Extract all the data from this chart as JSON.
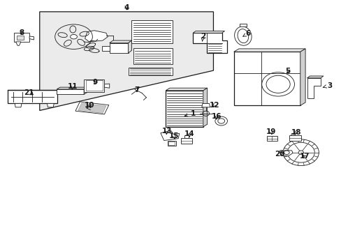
{
  "bg_color": "#ffffff",
  "line_color": "#1a1a1a",
  "figsize": [
    4.89,
    3.6
  ],
  "dpi": 100,
  "labels": {
    "1": [
      0.561,
      0.535,
      0.538,
      0.535
    ],
    "2": [
      0.6,
      0.858,
      0.6,
      0.838
    ],
    "3": [
      0.96,
      0.62,
      0.94,
      0.615
    ],
    "4": [
      0.37,
      0.978,
      0.37,
      0.96
    ],
    "5": [
      0.84,
      0.71,
      0.84,
      0.695
    ],
    "6": [
      0.73,
      0.858,
      0.718,
      0.842
    ],
    "7": [
      0.39,
      0.64,
      0.4,
      0.625
    ],
    "8": [
      0.062,
      0.878,
      0.062,
      0.86
    ],
    "9": [
      0.28,
      0.665,
      0.295,
      0.652
    ],
    "10": [
      0.265,
      0.57,
      0.285,
      0.565
    ],
    "11": [
      0.215,
      0.65,
      0.215,
      0.635
    ],
    "12": [
      0.63,
      0.59,
      0.617,
      0.58
    ],
    "13": [
      0.49,
      0.48,
      0.497,
      0.467
    ],
    "14": [
      0.555,
      0.462,
      0.555,
      0.45
    ],
    "15": [
      0.52,
      0.456,
      0.512,
      0.443
    ],
    "16": [
      0.638,
      0.52,
      0.63,
      0.512
    ],
    "17": [
      0.892,
      0.368,
      0.892,
      0.385
    ],
    "18": [
      0.87,
      0.442,
      0.867,
      0.455
    ],
    "19": [
      0.795,
      0.455,
      0.806,
      0.447
    ],
    "20": [
      0.818,
      0.378,
      0.832,
      0.39
    ],
    "21": [
      0.083,
      0.645,
      0.1,
      0.638
    ]
  }
}
